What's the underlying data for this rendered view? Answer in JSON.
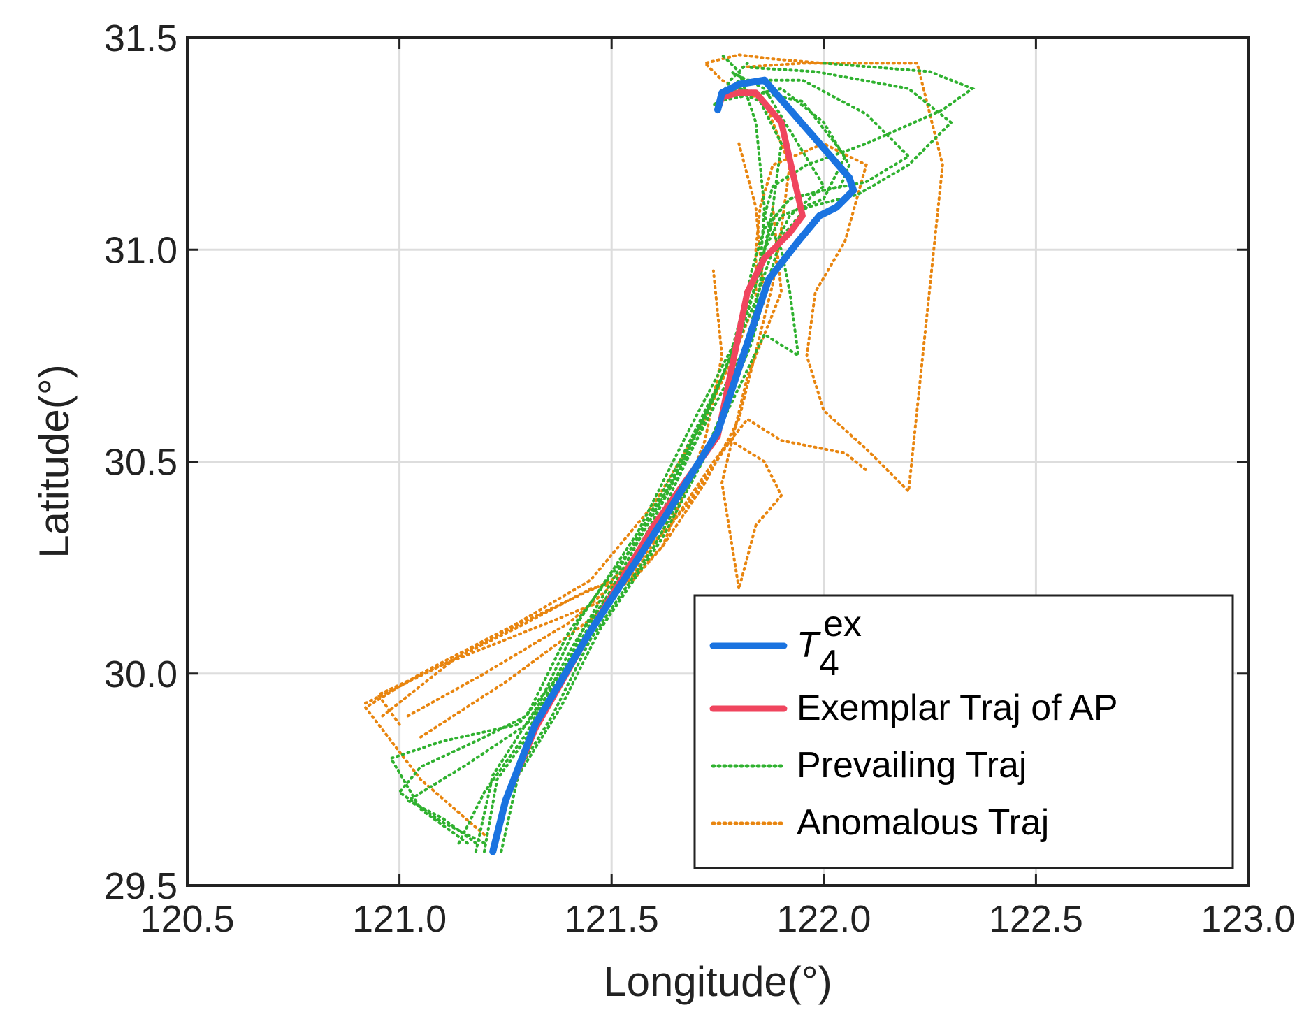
{
  "chart_data": {
    "type": "line",
    "title": "",
    "xlabel": "Longitude(°)",
    "ylabel": "Latitude(°)",
    "xlim": [
      120.5,
      123.0
    ],
    "ylim": [
      29.5,
      31.5
    ],
    "xticks": [
      120.5,
      121.0,
      121.5,
      122.0,
      122.5,
      123.0
    ],
    "xtick_labels": [
      "120.5",
      "121.0",
      "121.5",
      "122.0",
      "122.5",
      "123.0"
    ],
    "yticks": [
      29.5,
      30.0,
      30.5,
      31.0,
      31.5
    ],
    "ytick_labels": [
      "29.5",
      "30.0",
      "30.5",
      "31.0",
      "31.5"
    ],
    "grid": true,
    "legend_position": "bottom-right",
    "series": [
      {
        "name": "Prevailing Traj",
        "style": "dotted",
        "color": "#2fb12f",
        "group": "prevailing",
        "trajectories": [
          {
            "x": [
              121.2,
              121.23,
              121.35,
              121.43,
              121.58,
              121.7,
              121.82,
              121.85,
              121.86,
              121.88,
              121.92,
              122.04,
              122.06,
              122.0,
              121.9,
              121.75,
              121.78,
              121.82
            ],
            "y": [
              29.58,
              29.75,
              29.92,
              30.1,
              30.3,
              30.55,
              30.78,
              30.92,
              31.0,
              31.07,
              31.12,
              31.15,
              31.2,
              31.3,
              31.38,
              31.35,
              31.4,
              31.44
            ]
          },
          {
            "x": [
              121.18,
              121.22,
              121.33,
              121.42,
              121.56,
              121.68,
              121.8,
              121.83,
              121.86,
              121.92,
              122.0,
              122.1,
              122.2,
              122.1,
              121.95,
              121.8,
              121.76
            ],
            "y": [
              29.58,
              29.76,
              29.93,
              30.12,
              30.33,
              30.57,
              30.8,
              30.95,
              31.05,
              31.12,
              31.14,
              31.16,
              31.22,
              31.32,
              31.4,
              31.4,
              31.35
            ]
          },
          {
            "x": [
              121.22,
              121.26,
              121.36,
              121.45,
              121.6,
              121.72,
              121.83,
              121.87,
              121.9,
              121.96,
              122.08,
              122.2,
              122.3,
              122.2,
              121.98,
              121.82
            ],
            "y": [
              29.58,
              29.74,
              29.9,
              30.08,
              30.3,
              30.52,
              30.78,
              30.93,
              31.03,
              31.1,
              31.13,
              31.2,
              31.3,
              31.38,
              31.42,
              31.43
            ]
          },
          {
            "x": [
              121.2,
              121.1,
              121.0,
              121.05,
              121.2,
              121.3,
              121.4,
              121.55,
              121.7,
              121.78,
              121.82,
              121.86,
              121.9,
              122.0,
              122.05,
              121.95,
              121.8
            ],
            "y": [
              29.6,
              29.65,
              29.72,
              29.78,
              29.85,
              29.9,
              30.1,
              30.3,
              30.55,
              30.75,
              30.9,
              31.0,
              31.08,
              31.12,
              31.22,
              31.35,
              31.38
            ]
          },
          {
            "x": [
              121.16,
              121.05,
              120.98,
              121.1,
              121.28,
              121.38,
              121.5,
              121.64,
              121.74,
              121.8,
              121.84,
              121.86,
              121.88,
              121.9,
              121.85,
              121.78,
              121.74
            ],
            "y": [
              29.6,
              29.68,
              29.8,
              29.84,
              29.88,
              30.0,
              30.2,
              30.45,
              30.65,
              30.8,
              30.92,
              31.0,
              31.1,
              31.25,
              31.35,
              31.38,
              31.34
            ]
          },
          {
            "x": [
              121.14,
              121.2,
              121.3,
              121.4,
              121.52,
              121.66,
              121.76,
              121.82,
              121.85,
              121.86,
              121.84,
              121.8,
              121.76
            ],
            "y": [
              29.6,
              29.72,
              29.86,
              30.05,
              30.25,
              30.5,
              30.7,
              30.85,
              30.95,
              31.1,
              31.3,
              31.42,
              31.46
            ]
          },
          {
            "x": [
              121.24,
              121.28,
              121.38,
              121.47,
              121.62,
              121.74,
              121.86,
              121.94,
              121.92,
              121.9,
              121.86,
              121.88,
              121.96,
              122.1,
              122.28,
              122.35,
              122.25,
              122.0
            ],
            "y": [
              29.58,
              29.76,
              29.92,
              30.1,
              30.32,
              30.55,
              30.8,
              30.75,
              30.9,
              31.0,
              31.08,
              31.15,
              31.2,
              31.25,
              31.33,
              31.38,
              31.42,
              31.44
            ]
          },
          {
            "x": [
              121.18,
              121.1,
              121.02,
              121.15,
              121.3,
              121.42,
              121.54,
              121.66,
              121.76,
              121.84,
              121.88,
              121.92,
              122.0,
              121.86,
              121.78
            ],
            "y": [
              29.6,
              29.66,
              29.7,
              29.78,
              29.88,
              30.05,
              30.25,
              30.48,
              30.7,
              30.88,
              31.0,
              31.08,
              31.15,
              31.38,
              31.42
            ]
          }
        ]
      },
      {
        "name": "Anomalous Traj",
        "style": "dotted",
        "color": "#e8850f",
        "group": "anomalous",
        "trajectories": [
          {
            "x": [
              121.2,
              121.05,
              120.92,
              121.05,
              121.28,
              121.45,
              121.6,
              121.72,
              121.8,
              121.84,
              121.84,
              121.85,
              121.88,
              122.0,
              122.1,
              122.05,
              121.98,
              121.96,
              122.0,
              122.1,
              122.2,
              122.28,
              122.22,
              121.95,
              121.8
            ],
            "y": [
              29.62,
              29.75,
              29.92,
              30.0,
              30.12,
              30.22,
              30.4,
              30.6,
              30.78,
              30.88,
              31.0,
              31.1,
              31.2,
              31.25,
              31.2,
              31.02,
              30.9,
              30.75,
              30.62,
              30.53,
              30.43,
              31.2,
              31.44,
              31.44,
              31.43
            ]
          },
          {
            "x": [
              121.0,
              120.95,
              121.1,
              121.3,
              121.5,
              121.62,
              121.72,
              121.8,
              121.85,
              121.88,
              121.9,
              121.92,
              121.86,
              121.76,
              121.72,
              121.8,
              121.88,
              122.0
            ],
            "y": [
              29.88,
              29.95,
              30.02,
              30.1,
              30.18,
              30.3,
              30.45,
              30.6,
              30.8,
              30.92,
              31.05,
              31.2,
              31.35,
              31.4,
              31.44,
              31.46,
              31.45,
              31.44
            ]
          },
          {
            "x": [
              121.02,
              121.2,
              121.4,
              121.55,
              121.68,
              121.78,
              121.86,
              121.9,
              121.84,
              121.8,
              121.76,
              121.82,
              121.9,
              121.88
            ],
            "y": [
              29.9,
              30.0,
              30.12,
              30.25,
              30.4,
              30.55,
              30.5,
              30.42,
              30.35,
              30.2,
              30.45,
              30.7,
              30.9,
              31.1
            ]
          },
          {
            "x": [
              120.92,
              121.1,
              121.3,
              121.45,
              121.55,
              121.62,
              121.72,
              121.76,
              121.74
            ],
            "y": [
              29.93,
              30.02,
              30.12,
              30.2,
              30.22,
              30.3,
              30.55,
              30.75,
              30.95
            ]
          },
          {
            "x": [
              121.05,
              121.25,
              121.48,
              121.6,
              121.7,
              121.78,
              121.82,
              121.86,
              121.84,
              121.8
            ],
            "y": [
              29.85,
              29.98,
              30.15,
              30.3,
              30.48,
              30.65,
              30.78,
              30.88,
              31.1,
              31.25
            ]
          },
          {
            "x": [
              120.96,
              121.15,
              121.35,
              121.5,
              121.64,
              121.74,
              121.82,
              121.9,
              122.05,
              122.1
            ],
            "y": [
              29.9,
              30.05,
              30.15,
              30.22,
              30.35,
              30.5,
              30.6,
              30.55,
              30.52,
              30.48
            ]
          }
        ]
      },
      {
        "name": "Exemplar Traj of AP",
        "style": "solid",
        "color": "#f0455e",
        "group": "exemplar",
        "x": [
          121.22,
          121.25,
          121.32,
          121.45,
          121.6,
          121.75,
          121.82,
          121.86,
          121.92,
          121.95,
          121.9,
          121.84,
          121.8,
          121.76,
          121.75
        ],
        "y": [
          29.58,
          29.7,
          29.87,
          30.1,
          30.35,
          30.56,
          30.9,
          30.98,
          31.04,
          31.08,
          31.3,
          31.37,
          31.37,
          31.36,
          31.33
        ]
      },
      {
        "name": "T_4^ex",
        "name_main": "T",
        "name_sup": "ex",
        "name_sub": "4",
        "style": "solid",
        "color": "#1a73e0",
        "group": "t4ex",
        "x": [
          121.22,
          121.25,
          121.32,
          121.45,
          121.62,
          121.75,
          121.87,
          121.94,
          121.99,
          122.03,
          122.07,
          122.06,
          121.86,
          121.8,
          121.76,
          121.75
        ],
        "y": [
          29.58,
          29.7,
          29.88,
          30.1,
          30.36,
          30.57,
          30.93,
          31.02,
          31.08,
          31.1,
          31.14,
          31.17,
          31.4,
          31.39,
          31.37,
          31.33
        ]
      }
    ],
    "legend_order": [
      "t4ex",
      "exemplar",
      "prevailing",
      "anomalous"
    ]
  }
}
